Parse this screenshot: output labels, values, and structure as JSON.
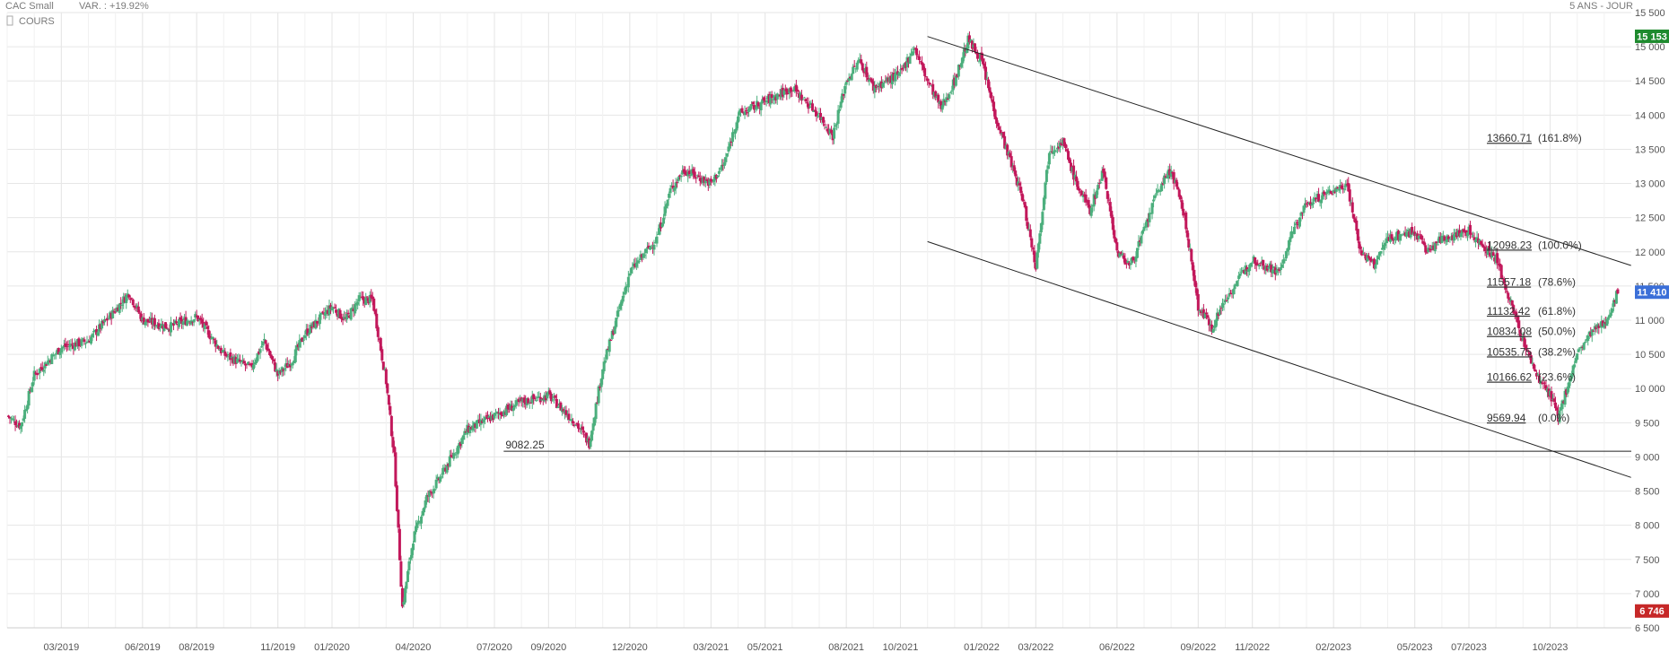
{
  "header": {
    "instrument": "CAC Small",
    "variation": "VAR. : +19.92%",
    "period": "5 ANS - JOUR",
    "series_label": "COURS"
  },
  "badges": {
    "high": {
      "text": "15 153",
      "value": 15153,
      "color": "#1e8a2e"
    },
    "last": {
      "text": "11 410",
      "value": 11410,
      "color": "#3b6fd8"
    },
    "low": {
      "text": "6 746",
      "value": 6746,
      "color": "#c62828"
    }
  },
  "colors": {
    "up": "#4caf7d",
    "down": "#c2185b",
    "grid": "#e6e6e6",
    "line": "#222222"
  },
  "chart_data": {
    "type": "candlestick",
    "x_unit": "month",
    "x_start": "2019-01",
    "x_end": "2023-12",
    "ylim": [
      6500,
      15500
    ],
    "y_ticks": [
      6500,
      7000,
      7500,
      8000,
      8500,
      9000,
      9500,
      10000,
      10500,
      11000,
      11500,
      12000,
      12500,
      13000,
      13500,
      14000,
      14500,
      15000,
      15500
    ],
    "y_tick_labels": [
      "6 500",
      "7 000",
      "7 500",
      "8 000",
      "8 500",
      "9 000",
      "9 500",
      "10 000",
      "10 500",
      "11 000",
      "11 500",
      "12 000",
      "12 500",
      "13 000",
      "13 500",
      "14 000",
      "14 500",
      "15 000",
      "15 500"
    ],
    "x_ticks": [
      "2019-03",
      "2019-06",
      "2019-08",
      "2019-11",
      "2020-01",
      "2020-04",
      "2020-07",
      "2020-09",
      "2020-12",
      "2021-03",
      "2021-05",
      "2021-08",
      "2021-10",
      "2022-01",
      "2022-03",
      "2022-06",
      "2022-09",
      "2022-11",
      "2023-02",
      "2023-05",
      "2023-07",
      "2023-10"
    ],
    "x_tick_labels": [
      "03/2019",
      "06/2019",
      "08/2019",
      "11/2019",
      "01/2020",
      "04/2020",
      "07/2020",
      "09/2020",
      "12/2020",
      "03/2021",
      "05/2021",
      "08/2021",
      "10/2021",
      "01/2022",
      "03/2022",
      "06/2022",
      "09/2022",
      "11/2022",
      "02/2023",
      "05/2023",
      "07/2023",
      "10/2023"
    ],
    "price_path": [
      [
        "2019-01",
        9600
      ],
      [
        "2019-01.5",
        9450
      ],
      [
        "2019-02",
        10200
      ],
      [
        "2019-03",
        10600
      ],
      [
        "2019-04",
        10700
      ],
      [
        "2019-05",
        11150
      ],
      [
        "2019-05.5",
        11400
      ],
      [
        "2019-06",
        11000
      ],
      [
        "2019-07",
        10900
      ],
      [
        "2019-08",
        11050
      ],
      [
        "2019-09",
        10500
      ],
      [
        "2019-10",
        10300
      ],
      [
        "2019-10.5",
        10700
      ],
      [
        "2019-11",
        10200
      ],
      [
        "2019-11.5",
        10400
      ],
      [
        "2019-12",
        10800
      ],
      [
        "2020-01",
        11200
      ],
      [
        "2020-01.5",
        11000
      ],
      [
        "2020-02",
        11300
      ],
      [
        "2020-02.5",
        11300
      ],
      [
        "2020-03",
        10100
      ],
      [
        "2020-03.3",
        9000
      ],
      [
        "2020-03.6",
        6800
      ],
      [
        "2020-04",
        7800
      ],
      [
        "2020-04.5",
        8400
      ],
      [
        "2020-05",
        8700
      ],
      [
        "2020-06",
        9400
      ],
      [
        "2020-07",
        9600
      ],
      [
        "2020-08",
        9800
      ],
      [
        "2020-09",
        9900
      ],
      [
        "2020-09.5",
        9700
      ],
      [
        "2020-10",
        9500
      ],
      [
        "2020-10.5",
        9200
      ],
      [
        "2020-11",
        10300
      ],
      [
        "2020-11.5",
        11000
      ],
      [
        "2020-12",
        11700
      ],
      [
        "2021-01",
        12200
      ],
      [
        "2021-01.5",
        12900
      ],
      [
        "2021-02",
        13200
      ],
      [
        "2021-03",
        13000
      ],
      [
        "2021-03.5",
        13300
      ],
      [
        "2021-04",
        14000
      ],
      [
        "2021-05",
        14200
      ],
      [
        "2021-06",
        14400
      ],
      [
        "2021-07",
        14000
      ],
      [
        "2021-07.5",
        13700
      ],
      [
        "2021-08",
        14500
      ],
      [
        "2021-08.5",
        14800
      ],
      [
        "2021-09",
        14400
      ],
      [
        "2021-10",
        14600
      ],
      [
        "2021-10.5",
        15000
      ],
      [
        "2021-11",
        14500
      ],
      [
        "2021-11.5",
        14100
      ],
      [
        "2021-12",
        14500
      ],
      [
        "2021-12.5",
        15100
      ],
      [
        "2022-01",
        14800
      ],
      [
        "2022-01.5",
        14000
      ],
      [
        "2022-02",
        13400
      ],
      [
        "2022-02.5",
        12800
      ],
      [
        "2022-03",
        11800
      ],
      [
        "2022-03.5",
        13500
      ],
      [
        "2022-04",
        13600
      ],
      [
        "2022-04.5",
        13000
      ],
      [
        "2022-05",
        12600
      ],
      [
        "2022-05.5",
        13200
      ],
      [
        "2022-06",
        12000
      ],
      [
        "2022-06.5",
        11800
      ],
      [
        "2022-07",
        12300
      ],
      [
        "2022-07.5",
        12900
      ],
      [
        "2022-08",
        13200
      ],
      [
        "2022-08.5",
        12500
      ],
      [
        "2022-09",
        11200
      ],
      [
        "2022-09.5",
        10900
      ],
      [
        "2022-10",
        11300
      ],
      [
        "2022-10.5",
        11600
      ],
      [
        "2022-11",
        11900
      ],
      [
        "2022-12",
        11700
      ],
      [
        "2022-12.5",
        12300
      ],
      [
        "2023-01",
        12700
      ],
      [
        "2023-02",
        12900
      ],
      [
        "2023-02.5",
        13000
      ],
      [
        "2023-03",
        12000
      ],
      [
        "2023-03.5",
        11800
      ],
      [
        "2023-04",
        12200
      ],
      [
        "2023-05",
        12300
      ],
      [
        "2023-05.5",
        12000
      ],
      [
        "2023-06",
        12200
      ],
      [
        "2023-07",
        12300
      ],
      [
        "2023-07.5",
        12100
      ],
      [
        "2023-08",
        11900
      ],
      [
        "2023-08.5",
        11300
      ],
      [
        "2023-09",
        10700
      ],
      [
        "2023-09.5",
        10200
      ],
      [
        "2023-10",
        9900
      ],
      [
        "2023-10.3",
        9580
      ],
      [
        "2023-11",
        10500
      ],
      [
        "2023-11.5",
        10800
      ],
      [
        "2023-12",
        10950
      ],
      [
        "2023-12.5",
        11410
      ]
    ],
    "annotations": {
      "channel_upper": [
        [
          "2021-11",
          15150
        ],
        [
          "2023-12.99",
          11800
        ]
      ],
      "channel_lower": [
        [
          "2021-11",
          12150
        ],
        [
          "2023-12.99",
          8700
        ]
      ],
      "support": {
        "value": 9082.25,
        "label": "9082.25",
        "from": "2020-09"
      },
      "fibonacci": [
        {
          "value": 13660.71,
          "text": "13660.71",
          "pct": "(161.8%)"
        },
        {
          "value": 12098.23,
          "text": "12098.23",
          "pct": "(100.0%)"
        },
        {
          "value": 11557.18,
          "text": "11557.18",
          "pct": "(78.6%)"
        },
        {
          "value": 11132.42,
          "text": "11132.42",
          "pct": "(61.8%)"
        },
        {
          "value": 10834.08,
          "text": "10834.08",
          "pct": "(50.0%)"
        },
        {
          "value": 10535.75,
          "text": "10535.75",
          "pct": "(38.2%)"
        },
        {
          "value": 10166.62,
          "text": "10166.62",
          "pct": "(23.6%)"
        },
        {
          "value": 9569.94,
          "text": "9569.94",
          "pct": "(0.0%)"
        }
      ]
    }
  }
}
